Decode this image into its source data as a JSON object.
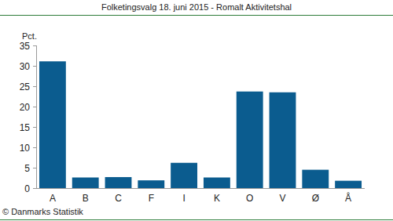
{
  "chart_data": {
    "type": "bar",
    "title": "Folketingsvalg 18. juni 2015 - Romalt Aktivitetshal",
    "y_label": "Pct.",
    "categories": [
      "A",
      "B",
      "C",
      "F",
      "I",
      "K",
      "O",
      "V",
      "Ø",
      "Å"
    ],
    "values": [
      31.1,
      2.6,
      2.7,
      1.9,
      6.2,
      2.6,
      23.7,
      23.5,
      4.5,
      1.8
    ],
    "color": "#0b5c8f",
    "ylim": [
      0,
      35
    ],
    "yticks": [
      0,
      5,
      10,
      15,
      20,
      25,
      30,
      35
    ],
    "grid": false,
    "annotations": [
      "© Danmarks Statistik"
    ]
  }
}
